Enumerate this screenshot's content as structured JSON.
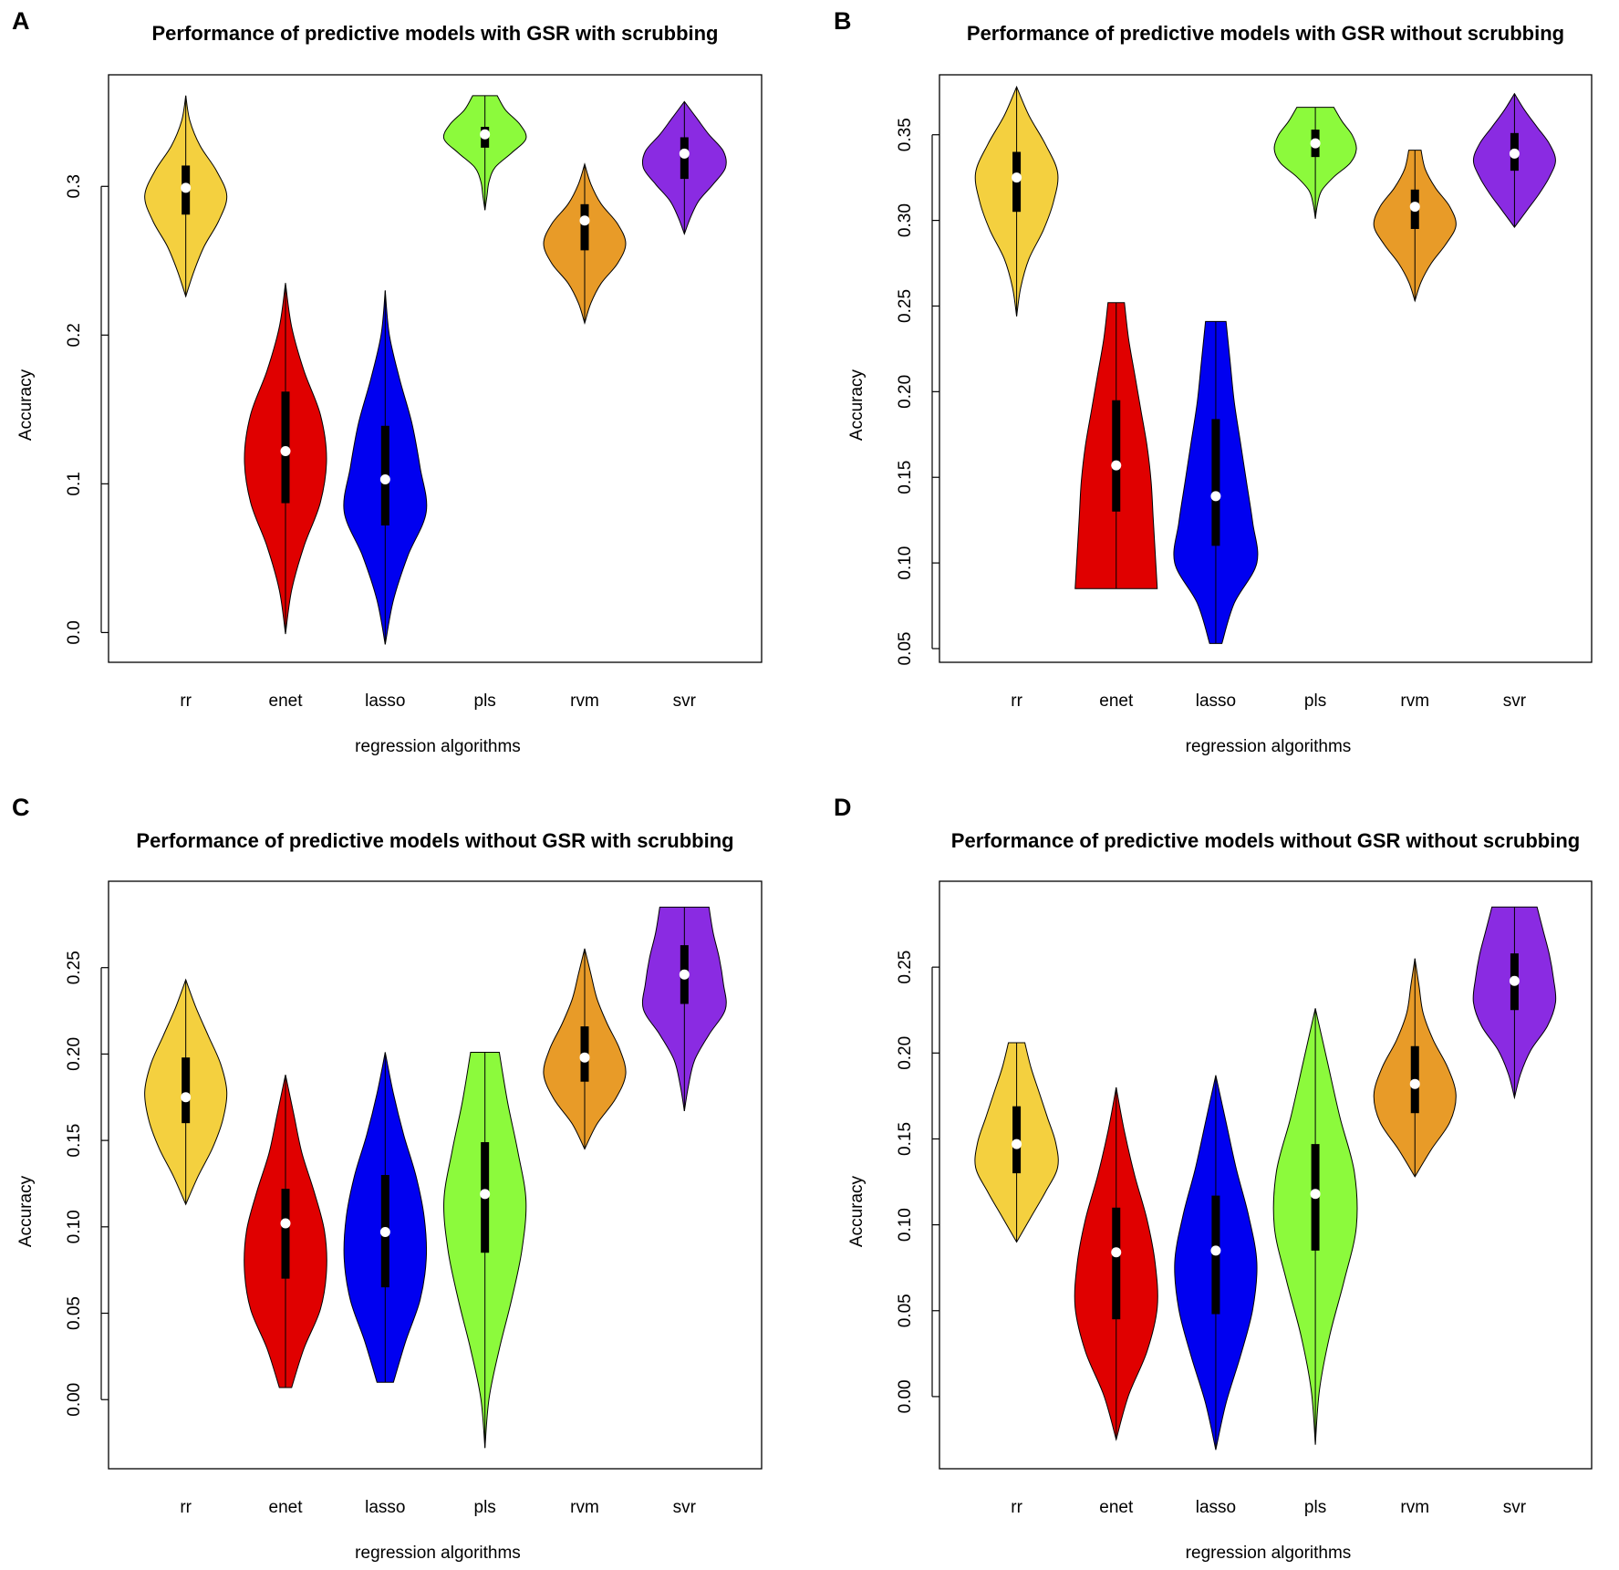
{
  "figure": {
    "chart_data": [
      {
        "panel": "A",
        "type": "violin",
        "title": "Performance of predictive models with GSR with scrubbing",
        "xlabel": "regression algorithms",
        "ylabel": "Accuracy",
        "categories": [
          "rr",
          "enet",
          "lasso",
          "pls",
          "rvm",
          "svr"
        ],
        "yticks": [
          0.0,
          0.1,
          0.2,
          0.3
        ],
        "ytick_labels": [
          "0.0",
          "0.1",
          "0.2",
          "0.3"
        ],
        "ylim": [
          -0.02,
          0.375
        ],
        "violins": [
          {
            "name": "rr",
            "color": "#F4D03F",
            "min": 0.226,
            "max": 0.361,
            "q1": 0.281,
            "median": 0.299,
            "q3": 0.314,
            "widths": [
              0,
              0.2,
              0.45,
              0.8,
              1.0,
              0.75,
              0.35,
              0.1,
              0
            ]
          },
          {
            "name": "enet",
            "color": "#E00000",
            "min": -0.001,
            "max": 0.235,
            "q1": 0.087,
            "median": 0.122,
            "q3": 0.162,
            "widths": [
              0,
              0.15,
              0.45,
              0.85,
              1.0,
              0.85,
              0.45,
              0.15,
              0
            ]
          },
          {
            "name": "lasso",
            "color": "#0000F0",
            "min": -0.008,
            "max": 0.23,
            "q1": 0.072,
            "median": 0.103,
            "q3": 0.139,
            "widths": [
              0,
              0.2,
              0.55,
              1.0,
              0.85,
              0.65,
              0.35,
              0.1,
              0
            ]
          },
          {
            "name": "pls",
            "color": "#8CFA3C",
            "min": 0.284,
            "max": 0.361,
            "q1": 0.326,
            "median": 0.335,
            "q3": 0.34,
            "widths": [
              0,
              0.05,
              0.1,
              0.25,
              0.65,
              1.0,
              0.85,
              0.5,
              0.3
            ]
          },
          {
            "name": "rvm",
            "color": "#E89B28",
            "min": 0.208,
            "max": 0.315,
            "q1": 0.257,
            "median": 0.277,
            "q3": 0.288,
            "widths": [
              0,
              0.15,
              0.4,
              0.8,
              1.0,
              0.8,
              0.4,
              0.15,
              0
            ]
          },
          {
            "name": "svr",
            "color": "#8A2BE2",
            "min": 0.268,
            "max": 0.357,
            "q1": 0.305,
            "median": 0.322,
            "q3": 0.333,
            "widths": [
              0,
              0.15,
              0.35,
              0.7,
              1.0,
              0.95,
              0.6,
              0.3,
              0
            ]
          }
        ]
      },
      {
        "panel": "B",
        "type": "violin",
        "title": "Performance of predictive models with GSR without scrubbing",
        "xlabel": "regression algorithms",
        "ylabel": "Accuracy",
        "categories": [
          "rr",
          "enet",
          "lasso",
          "pls",
          "rvm",
          "svr"
        ],
        "yticks": [
          0.05,
          0.1,
          0.15,
          0.2,
          0.25,
          0.3,
          0.35
        ],
        "ytick_labels": [
          "0.05",
          "0.10",
          "0.15",
          "0.20",
          "0.25",
          "0.30",
          "0.35"
        ],
        "ylim": [
          0.042,
          0.385
        ],
        "violins": [
          {
            "name": "rr",
            "color": "#F4D03F",
            "min": 0.244,
            "max": 0.378,
            "q1": 0.305,
            "median": 0.325,
            "q3": 0.34,
            "widths": [
              0,
              0.1,
              0.3,
              0.65,
              0.9,
              1.0,
              0.7,
              0.3,
              0
            ]
          },
          {
            "name": "enet",
            "color": "#E00000",
            "min": 0.085,
            "max": 0.252,
            "q1": 0.13,
            "median": 0.157,
            "q3": 0.195,
            "widths": [
              1.0,
              0.95,
              0.9,
              0.85,
              0.75,
              0.6,
              0.45,
              0.3,
              0.2
            ]
          },
          {
            "name": "lasso",
            "color": "#0000F0",
            "min": 0.053,
            "max": 0.241,
            "q1": 0.11,
            "median": 0.139,
            "q3": 0.184,
            "widths": [
              0.15,
              0.45,
              1.0,
              0.9,
              0.75,
              0.6,
              0.45,
              0.35,
              0.25
            ]
          },
          {
            "name": "pls",
            "color": "#8CFA3C",
            "min": 0.301,
            "max": 0.366,
            "q1": 0.337,
            "median": 0.345,
            "q3": 0.353,
            "widths": [
              0,
              0.05,
              0.15,
              0.45,
              0.85,
              1.0,
              0.9,
              0.65,
              0.45
            ]
          },
          {
            "name": "rvm",
            "color": "#E89B28",
            "min": 0.253,
            "max": 0.341,
            "q1": 0.295,
            "median": 0.308,
            "q3": 0.318,
            "widths": [
              0,
              0.15,
              0.4,
              0.75,
              1.0,
              0.85,
              0.5,
              0.25,
              0.15
            ]
          },
          {
            "name": "svr",
            "color": "#8A2BE2",
            "min": 0.296,
            "max": 0.374,
            "q1": 0.329,
            "median": 0.339,
            "q3": 0.351,
            "widths": [
              0,
              0.3,
              0.6,
              0.85,
              1.0,
              0.85,
              0.55,
              0.25,
              0
            ]
          }
        ]
      },
      {
        "panel": "C",
        "type": "violin",
        "title": "Performance of predictive models without GSR with scrubbing",
        "xlabel": "regression algorithms",
        "ylabel": "Accuracy",
        "categories": [
          "rr",
          "enet",
          "lasso",
          "pls",
          "rvm",
          "svr"
        ],
        "yticks": [
          0.0,
          0.05,
          0.1,
          0.15,
          0.2,
          0.25
        ],
        "ytick_labels": [
          "0.00",
          "0.05",
          "0.10",
          "0.15",
          "0.20",
          "0.25"
        ],
        "ylim": [
          -0.04,
          0.3
        ],
        "violins": [
          {
            "name": "rr",
            "color": "#F4D03F",
            "min": 0.113,
            "max": 0.243,
            "q1": 0.16,
            "median": 0.175,
            "q3": 0.198,
            "widths": [
              0,
              0.3,
              0.65,
              0.9,
              1.0,
              0.85,
              0.55,
              0.25,
              0
            ]
          },
          {
            "name": "enet",
            "color": "#E00000",
            "min": 0.007,
            "max": 0.188,
            "q1": 0.07,
            "median": 0.102,
            "q3": 0.122,
            "widths": [
              0.15,
              0.45,
              0.85,
              1.0,
              0.95,
              0.7,
              0.4,
              0.2,
              0
            ]
          },
          {
            "name": "lasso",
            "color": "#0000F0",
            "min": 0.01,
            "max": 0.201,
            "q1": 0.065,
            "median": 0.097,
            "q3": 0.13,
            "widths": [
              0.2,
              0.5,
              0.85,
              1.0,
              0.95,
              0.75,
              0.45,
              0.2,
              0
            ]
          },
          {
            "name": "pls",
            "color": "#8CFA3C",
            "min": -0.028,
            "max": 0.201,
            "q1": 0.085,
            "median": 0.119,
            "q3": 0.149,
            "widths": [
              0,
              0.1,
              0.35,
              0.65,
              0.9,
              1.0,
              0.8,
              0.55,
              0.35
            ]
          },
          {
            "name": "rvm",
            "color": "#E89B28",
            "min": 0.145,
            "max": 0.261,
            "q1": 0.184,
            "median": 0.198,
            "q3": 0.216,
            "widths": [
              0,
              0.3,
              0.75,
              1.0,
              0.85,
              0.55,
              0.3,
              0.15,
              0
            ]
          },
          {
            "name": "svr",
            "color": "#8A2BE2",
            "min": 0.167,
            "max": 0.285,
            "q1": 0.229,
            "median": 0.246,
            "q3": 0.263,
            "widths": [
              0,
              0.1,
              0.25,
              0.6,
              1.0,
              0.95,
              0.85,
              0.7,
              0.6
            ]
          }
        ]
      },
      {
        "panel": "D",
        "type": "violin",
        "title": "Performance of predictive models without GSR without scrubbing",
        "xlabel": "regression algorithms",
        "ylabel": "Accuracy",
        "categories": [
          "rr",
          "enet",
          "lasso",
          "pls",
          "rvm",
          "svr"
        ],
        "yticks": [
          0.0,
          0.05,
          0.1,
          0.15,
          0.2,
          0.25
        ],
        "ytick_labels": [
          "0.00",
          "0.05",
          "0.10",
          "0.15",
          "0.20",
          "0.25"
        ],
        "ylim": [
          -0.042,
          0.3
        ],
        "violins": [
          {
            "name": "rr",
            "color": "#F4D03F",
            "min": 0.09,
            "max": 0.206,
            "q1": 0.13,
            "median": 0.147,
            "q3": 0.169,
            "widths": [
              0,
              0.35,
              0.7,
              1.0,
              0.95,
              0.75,
              0.55,
              0.35,
              0.2
            ]
          },
          {
            "name": "enet",
            "color": "#E00000",
            "min": -0.025,
            "max": 0.18,
            "q1": 0.045,
            "median": 0.084,
            "q3": 0.11,
            "widths": [
              0,
              0.3,
              0.75,
              1.0,
              0.95,
              0.75,
              0.45,
              0.2,
              0
            ]
          },
          {
            "name": "lasso",
            "color": "#0000F0",
            "min": -0.031,
            "max": 0.187,
            "q1": 0.048,
            "median": 0.085,
            "q3": 0.117,
            "widths": [
              0,
              0.25,
              0.6,
              0.9,
              1.0,
              0.8,
              0.5,
              0.25,
              0
            ]
          },
          {
            "name": "pls",
            "color": "#8CFA3C",
            "min": -0.028,
            "max": 0.226,
            "q1": 0.085,
            "median": 0.118,
            "q3": 0.147,
            "widths": [
              0,
              0.1,
              0.35,
              0.7,
              1.0,
              0.95,
              0.6,
              0.3,
              0
            ]
          },
          {
            "name": "rvm",
            "color": "#E89B28",
            "min": 0.128,
            "max": 0.255,
            "q1": 0.165,
            "median": 0.182,
            "q3": 0.204,
            "widths": [
              0,
              0.4,
              0.85,
              1.0,
              0.8,
              0.45,
              0.2,
              0.1,
              0
            ]
          },
          {
            "name": "svr",
            "color": "#8A2BE2",
            "min": 0.174,
            "max": 0.285,
            "q1": 0.225,
            "median": 0.242,
            "q3": 0.258,
            "widths": [
              0,
              0.15,
              0.4,
              0.8,
              1.0,
              0.95,
              0.85,
              0.7,
              0.55
            ]
          }
        ]
      }
    ]
  }
}
